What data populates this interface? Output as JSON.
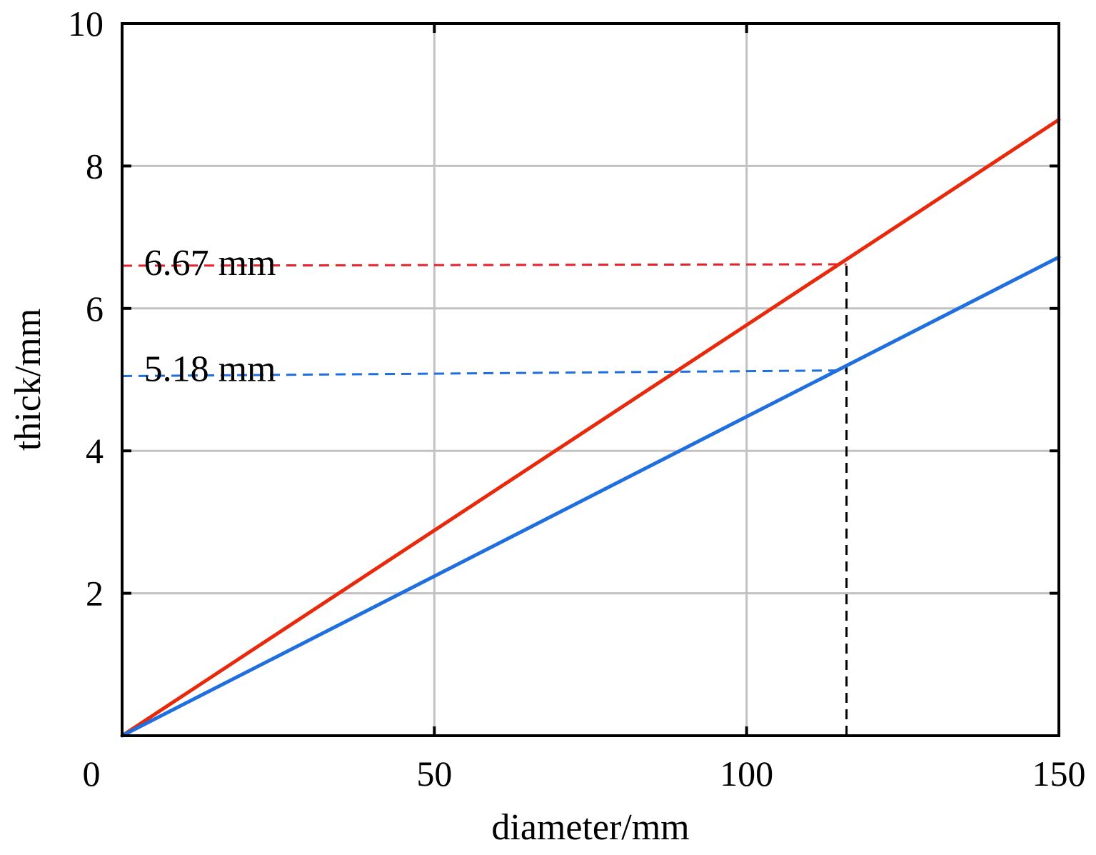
{
  "chart_data": {
    "type": "line",
    "xlabel": "diameter/mm",
    "ylabel": "thick/mm",
    "xlim": [
      0,
      150
    ],
    "ylim": [
      0,
      10
    ],
    "x_ticks": [
      0,
      50,
      100,
      150
    ],
    "x_tick_labels": [
      "0",
      "50",
      "100",
      "150"
    ],
    "y_ticks": [
      2,
      4,
      6,
      8,
      10
    ],
    "y_tick_labels": [
      "2",
      "4",
      "6",
      "8",
      "10"
    ],
    "grid": true,
    "series": [
      {
        "color": "#e8290b",
        "x": [
          0,
          150
        ],
        "y": [
          0,
          8.65
        ]
      },
      {
        "color": "#1f6fe0",
        "x": [
          0,
          150
        ],
        "y": [
          0,
          6.72
        ]
      }
    ],
    "reference_lines": [
      {
        "type": "horizontal-dashed",
        "color": "#e8222a",
        "x": [
          0,
          116
        ],
        "y": [
          6.6,
          6.62
        ]
      },
      {
        "type": "horizontal-dashed",
        "color": "#1f6fe0",
        "x": [
          0,
          116
        ],
        "y": [
          5.05,
          5.13
        ]
      },
      {
        "type": "vertical-dashed",
        "color": "#000000",
        "x": [
          116,
          116
        ],
        "y": [
          0,
          6.62
        ]
      }
    ],
    "annotations": [
      {
        "text": "6.67 mm",
        "x": 3.5,
        "y": 6.67
      },
      {
        "text": "5.18 mm",
        "x": 3.5,
        "y": 5.18
      }
    ]
  }
}
